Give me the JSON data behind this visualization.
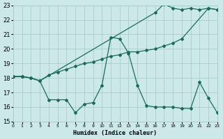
{
  "xlabel": "Humidex (Indice chaleur)",
  "xlim": [
    0,
    23
  ],
  "ylim": [
    15,
    23
  ],
  "yticks": [
    15,
    16,
    17,
    18,
    19,
    20,
    21,
    22,
    23
  ],
  "xticks": [
    0,
    1,
    2,
    3,
    4,
    5,
    6,
    7,
    8,
    9,
    10,
    11,
    12,
    13,
    14,
    15,
    16,
    17,
    18,
    19,
    20,
    21,
    22,
    23
  ],
  "bg_color": "#cce8e8",
  "grid_color": "#aacccc",
  "line_color": "#1a6b5a",
  "line1_x": [
    0,
    1,
    2,
    3,
    4,
    5,
    6,
    7,
    8,
    9,
    10,
    11,
    12,
    13,
    14,
    15,
    16,
    17,
    18,
    19,
    20,
    21,
    22,
    23
  ],
  "line1_y": [
    18.1,
    18.1,
    18.0,
    17.8,
    16.5,
    16.5,
    16.5,
    15.6,
    16.2,
    16.3,
    17.5,
    20.8,
    20.7,
    19.7,
    17.5,
    16.1,
    16.0,
    16.0,
    16.0,
    15.9,
    15.9,
    17.7,
    16.6,
    15.6
  ],
  "line2_x": [
    0,
    1,
    2,
    3,
    4,
    5,
    6,
    7,
    8,
    9,
    10,
    11,
    12,
    13,
    14,
    15,
    16,
    17,
    18,
    19,
    22,
    23
  ],
  "line2_y": [
    18.1,
    18.1,
    18.0,
    17.8,
    18.2,
    18.4,
    18.6,
    18.8,
    19.0,
    19.1,
    19.3,
    19.5,
    19.6,
    19.8,
    19.8,
    19.9,
    20.0,
    20.2,
    20.4,
    20.7,
    22.8,
    22.7
  ],
  "line3_x": [
    0,
    1,
    2,
    3,
    16,
    17,
    18,
    19,
    20,
    21,
    22,
    23
  ],
  "line3_y": [
    18.1,
    18.1,
    18.0,
    17.8,
    22.5,
    23.1,
    22.8,
    22.7,
    22.8,
    22.7,
    22.8,
    22.7
  ]
}
